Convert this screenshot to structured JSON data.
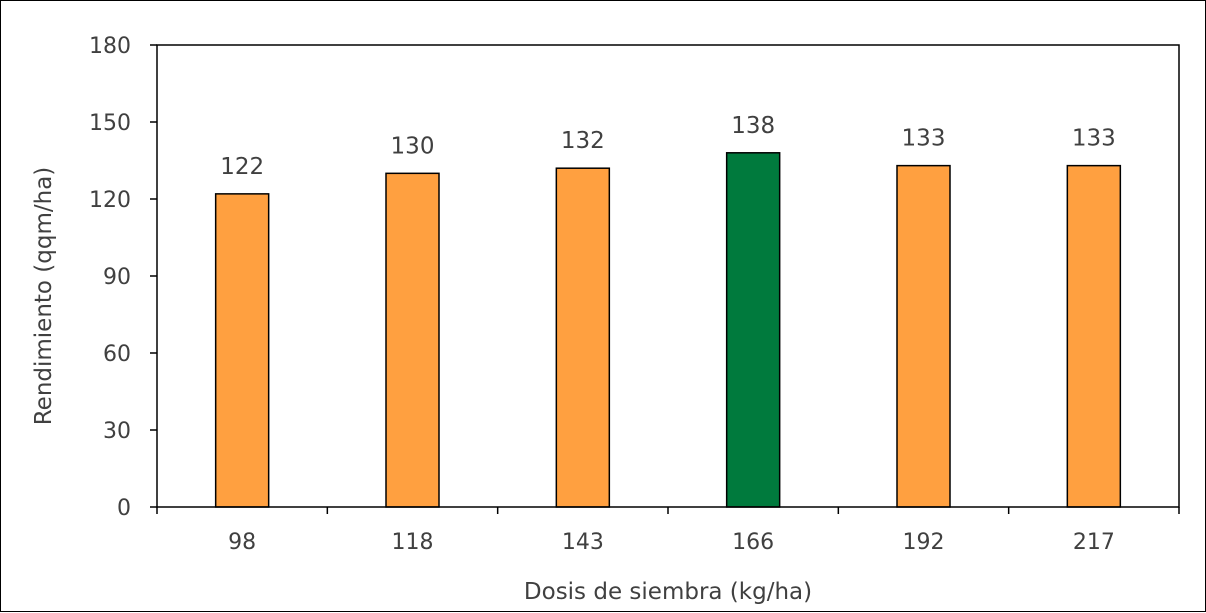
{
  "chart_data": {
    "type": "bar",
    "title": "",
    "xlabel": "Dosis de siembra (kg/ha)",
    "ylabel": "Rendimiento (qqm/ha)",
    "categories": [
      "98",
      "118",
      "143",
      "166",
      "192",
      "217"
    ],
    "values": [
      122,
      130,
      132,
      138,
      133,
      133
    ],
    "data_labels": [
      "122",
      "130",
      "132",
      "138",
      "133",
      "133"
    ],
    "ylim": [
      0,
      180
    ],
    "yticks": [
      "0",
      "30",
      "60",
      "90",
      "120",
      "150",
      "180"
    ],
    "grid": false,
    "legend": "none",
    "colors": {
      "default_bar": "#FFA040",
      "highlight_bar": "#007A3D",
      "bar_edge": "#000000",
      "axis": "#000000",
      "text": "#404040"
    },
    "highlight_category": "166"
  }
}
